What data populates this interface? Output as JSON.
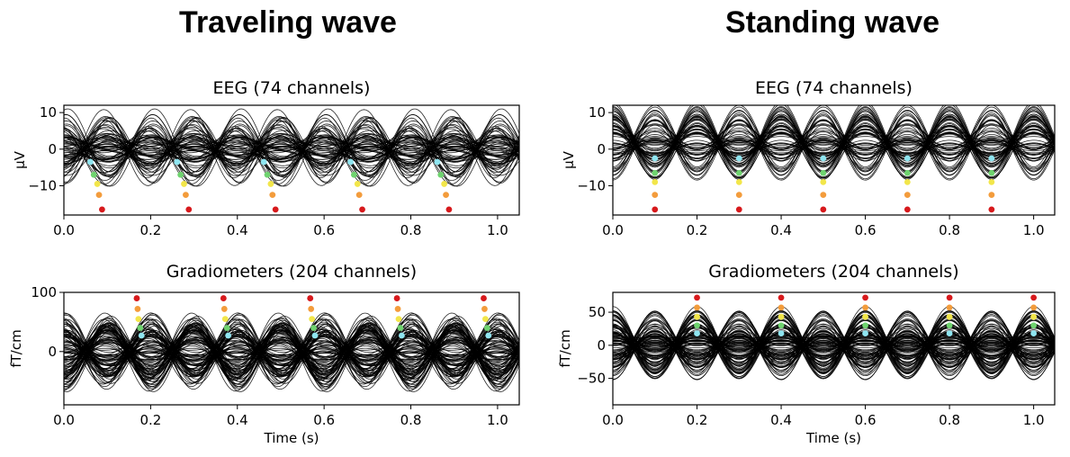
{
  "titles": {
    "left": "Traveling wave",
    "right": "Standing wave"
  },
  "marker_colors": {
    "red": "#d7191c",
    "orange": "#f39c3c",
    "yellow": "#f2e64a",
    "green": "#6fd36f",
    "cyan": "#8fe5f0"
  },
  "chart_data": [
    {
      "type": "line",
      "title": "EEG (74 channels)",
      "wave": "traveling",
      "xlabel": "",
      "ylabel": "µV",
      "xlim": [
        0.0,
        1.05
      ],
      "ylim": [
        -18,
        12
      ],
      "xticks": [
        "0.0",
        "0.2",
        "0.4",
        "0.6",
        "0.8",
        "1.0"
      ],
      "yticks": [
        "10",
        "0",
        "−10"
      ],
      "ytick_values": [
        10,
        0,
        -10
      ],
      "n_channels": 74,
      "oscillation_hz": 5,
      "markers": [
        {
          "x": 0.061,
          "y": -3.5,
          "color": "cyan"
        },
        {
          "x": 0.069,
          "y": -7,
          "color": "green"
        },
        {
          "x": 0.077,
          "y": -9.5,
          "color": "yellow"
        },
        {
          "x": 0.081,
          "y": -12.5,
          "color": "orange"
        },
        {
          "x": 0.088,
          "y": -16.5,
          "color": "red"
        },
        {
          "x": 0.261,
          "y": -3.5,
          "color": "cyan"
        },
        {
          "x": 0.269,
          "y": -7,
          "color": "green"
        },
        {
          "x": 0.277,
          "y": -9.5,
          "color": "yellow"
        },
        {
          "x": 0.281,
          "y": -12.5,
          "color": "orange"
        },
        {
          "x": 0.288,
          "y": -16.5,
          "color": "red"
        },
        {
          "x": 0.461,
          "y": -3.5,
          "color": "cyan"
        },
        {
          "x": 0.469,
          "y": -7,
          "color": "green"
        },
        {
          "x": 0.477,
          "y": -9.5,
          "color": "yellow"
        },
        {
          "x": 0.481,
          "y": -12.5,
          "color": "orange"
        },
        {
          "x": 0.488,
          "y": -16.5,
          "color": "red"
        },
        {
          "x": 0.661,
          "y": -3.5,
          "color": "cyan"
        },
        {
          "x": 0.669,
          "y": -7,
          "color": "green"
        },
        {
          "x": 0.677,
          "y": -9.5,
          "color": "yellow"
        },
        {
          "x": 0.681,
          "y": -12.5,
          "color": "orange"
        },
        {
          "x": 0.688,
          "y": -16.5,
          "color": "red"
        },
        {
          "x": 0.861,
          "y": -3.5,
          "color": "cyan"
        },
        {
          "x": 0.869,
          "y": -7,
          "color": "green"
        },
        {
          "x": 0.877,
          "y": -9.5,
          "color": "yellow"
        },
        {
          "x": 0.881,
          "y": -12.5,
          "color": "orange"
        },
        {
          "x": 0.888,
          "y": -16.5,
          "color": "red"
        }
      ]
    },
    {
      "type": "line",
      "title": "Gradiometers (204 channels)",
      "wave": "traveling",
      "xlabel": "Time (s)",
      "ylabel": "fT/cm",
      "xlim": [
        0.0,
        1.05
      ],
      "ylim": [
        -90,
        100
      ],
      "xticks": [
        "0.0",
        "0.2",
        "0.4",
        "0.6",
        "0.8",
        "1.0"
      ],
      "yticks": [
        "100",
        "0"
      ],
      "ytick_values": [
        100,
        0
      ],
      "n_channels": 204,
      "oscillation_hz": 5,
      "markers": [
        {
          "x": 0.168,
          "y": 90,
          "color": "red"
        },
        {
          "x": 0.17,
          "y": 72,
          "color": "orange"
        },
        {
          "x": 0.172,
          "y": 55,
          "color": "yellow"
        },
        {
          "x": 0.176,
          "y": 40,
          "color": "green"
        },
        {
          "x": 0.179,
          "y": 27,
          "color": "cyan"
        },
        {
          "x": 0.368,
          "y": 90,
          "color": "red"
        },
        {
          "x": 0.37,
          "y": 72,
          "color": "orange"
        },
        {
          "x": 0.372,
          "y": 55,
          "color": "yellow"
        },
        {
          "x": 0.376,
          "y": 40,
          "color": "green"
        },
        {
          "x": 0.379,
          "y": 27,
          "color": "cyan"
        },
        {
          "x": 0.568,
          "y": 90,
          "color": "red"
        },
        {
          "x": 0.57,
          "y": 72,
          "color": "orange"
        },
        {
          "x": 0.572,
          "y": 55,
          "color": "yellow"
        },
        {
          "x": 0.576,
          "y": 40,
          "color": "green"
        },
        {
          "x": 0.579,
          "y": 27,
          "color": "cyan"
        },
        {
          "x": 0.768,
          "y": 90,
          "color": "red"
        },
        {
          "x": 0.77,
          "y": 72,
          "color": "orange"
        },
        {
          "x": 0.772,
          "y": 55,
          "color": "yellow"
        },
        {
          "x": 0.776,
          "y": 40,
          "color": "green"
        },
        {
          "x": 0.779,
          "y": 27,
          "color": "cyan"
        },
        {
          "x": 0.968,
          "y": 90,
          "color": "red"
        },
        {
          "x": 0.97,
          "y": 72,
          "color": "orange"
        },
        {
          "x": 0.972,
          "y": 55,
          "color": "yellow"
        },
        {
          "x": 0.976,
          "y": 40,
          "color": "green"
        },
        {
          "x": 0.979,
          "y": 27,
          "color": "cyan"
        }
      ]
    },
    {
      "type": "line",
      "title": "EEG (74 channels)",
      "wave": "standing",
      "xlabel": "",
      "ylabel": "µV",
      "xlim": [
        0.0,
        1.05
      ],
      "ylim": [
        -18,
        12
      ],
      "xticks": [
        "0.0",
        "0.2",
        "0.4",
        "0.6",
        "0.8",
        "1.0"
      ],
      "yticks": [
        "10",
        "0",
        "−10"
      ],
      "ytick_values": [
        10,
        0,
        -10
      ],
      "n_channels": 74,
      "oscillation_hz": 5,
      "markers": [
        {
          "x": 0.1,
          "y": -2.5,
          "color": "cyan"
        },
        {
          "x": 0.1,
          "y": -6.5,
          "color": "green"
        },
        {
          "x": 0.1,
          "y": -9,
          "color": "yellow"
        },
        {
          "x": 0.1,
          "y": -12.5,
          "color": "orange"
        },
        {
          "x": 0.1,
          "y": -16.5,
          "color": "red"
        },
        {
          "x": 0.3,
          "y": -2.5,
          "color": "cyan"
        },
        {
          "x": 0.3,
          "y": -6.5,
          "color": "green"
        },
        {
          "x": 0.3,
          "y": -9,
          "color": "yellow"
        },
        {
          "x": 0.3,
          "y": -12.5,
          "color": "orange"
        },
        {
          "x": 0.3,
          "y": -16.5,
          "color": "red"
        },
        {
          "x": 0.5,
          "y": -2.5,
          "color": "cyan"
        },
        {
          "x": 0.5,
          "y": -6.5,
          "color": "green"
        },
        {
          "x": 0.5,
          "y": -9,
          "color": "yellow"
        },
        {
          "x": 0.5,
          "y": -12.5,
          "color": "orange"
        },
        {
          "x": 0.5,
          "y": -16.5,
          "color": "red"
        },
        {
          "x": 0.7,
          "y": -2.5,
          "color": "cyan"
        },
        {
          "x": 0.7,
          "y": -6.5,
          "color": "green"
        },
        {
          "x": 0.7,
          "y": -9,
          "color": "yellow"
        },
        {
          "x": 0.7,
          "y": -12.5,
          "color": "orange"
        },
        {
          "x": 0.7,
          "y": -16.5,
          "color": "red"
        },
        {
          "x": 0.9,
          "y": -2.5,
          "color": "cyan"
        },
        {
          "x": 0.9,
          "y": -6.5,
          "color": "green"
        },
        {
          "x": 0.9,
          "y": -9,
          "color": "yellow"
        },
        {
          "x": 0.9,
          "y": -12.5,
          "color": "orange"
        },
        {
          "x": 0.9,
          "y": -16.5,
          "color": "red"
        }
      ]
    },
    {
      "type": "line",
      "title": "Gradiometers (204 channels)",
      "wave": "standing",
      "xlabel": "Time (s)",
      "ylabel": "fT/cm",
      "xlim": [
        0.0,
        1.05
      ],
      "ylim": [
        -90,
        80
      ],
      "xticks": [
        "0.0",
        "0.2",
        "0.4",
        "0.6",
        "0.8",
        "1.0"
      ],
      "yticks": [
        "50",
        "0",
        "−50"
      ],
      "ytick_values": [
        50,
        0,
        -50
      ],
      "n_channels": 204,
      "oscillation_hz": 5,
      "markers": [
        {
          "x": 0.2,
          "y": 72,
          "color": "red"
        },
        {
          "x": 0.2,
          "y": 57,
          "color": "orange"
        },
        {
          "x": 0.2,
          "y": 43,
          "color": "yellow"
        },
        {
          "x": 0.2,
          "y": 30,
          "color": "green"
        },
        {
          "x": 0.2,
          "y": 18,
          "color": "cyan"
        },
        {
          "x": 0.4,
          "y": 72,
          "color": "red"
        },
        {
          "x": 0.4,
          "y": 57,
          "color": "orange"
        },
        {
          "x": 0.4,
          "y": 43,
          "color": "yellow"
        },
        {
          "x": 0.4,
          "y": 30,
          "color": "green"
        },
        {
          "x": 0.4,
          "y": 18,
          "color": "cyan"
        },
        {
          "x": 0.6,
          "y": 72,
          "color": "red"
        },
        {
          "x": 0.6,
          "y": 57,
          "color": "orange"
        },
        {
          "x": 0.6,
          "y": 43,
          "color": "yellow"
        },
        {
          "x": 0.6,
          "y": 30,
          "color": "green"
        },
        {
          "x": 0.6,
          "y": 18,
          "color": "cyan"
        },
        {
          "x": 0.8,
          "y": 72,
          "color": "red"
        },
        {
          "x": 0.8,
          "y": 57,
          "color": "orange"
        },
        {
          "x": 0.8,
          "y": 43,
          "color": "yellow"
        },
        {
          "x": 0.8,
          "y": 30,
          "color": "green"
        },
        {
          "x": 0.8,
          "y": 18,
          "color": "cyan"
        },
        {
          "x": 1.0,
          "y": 72,
          "color": "red"
        },
        {
          "x": 1.0,
          "y": 57,
          "color": "orange"
        },
        {
          "x": 1.0,
          "y": 43,
          "color": "yellow"
        },
        {
          "x": 1.0,
          "y": 30,
          "color": "green"
        },
        {
          "x": 1.0,
          "y": 18,
          "color": "cyan"
        }
      ]
    }
  ]
}
